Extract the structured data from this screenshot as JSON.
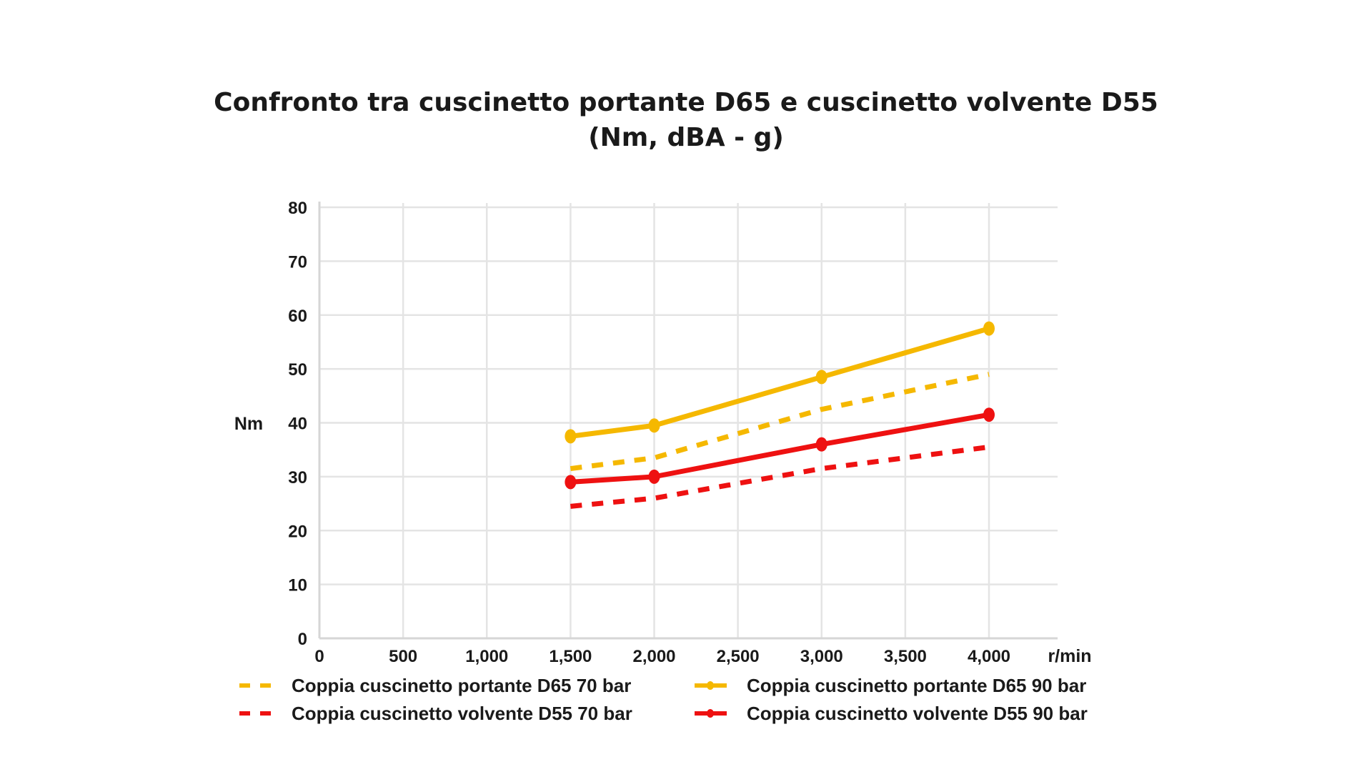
{
  "chart_data": {
    "type": "line",
    "title": "Confronto tra cuscinetto portante D65 e cuscinetto volvente D55",
    "subtitle": "(Nm, dBA - g)",
    "xlabel": "r/min",
    "ylabel": "Nm",
    "xlim": [
      0,
      4000
    ],
    "ylim": [
      0,
      80
    ],
    "x_ticks": [
      0,
      500,
      1000,
      1500,
      2000,
      2500,
      3000,
      3500,
      4000
    ],
    "x_tick_labels": [
      "0",
      "500",
      "1,000",
      "1,500",
      "2,000",
      "2,500",
      "3,000",
      "3,500",
      "4,000"
    ],
    "y_ticks": [
      0,
      10,
      20,
      30,
      40,
      50,
      60,
      70,
      80
    ],
    "y_tick_labels": [
      "0",
      "10",
      "20",
      "30",
      "40",
      "50",
      "60",
      "70",
      "80"
    ],
    "grid": true,
    "legend_position": "bottom",
    "x": [
      1500,
      2000,
      3000,
      4000
    ],
    "series": [
      {
        "name": "Coppia cuscinetto portante D65 70 bar",
        "values": [
          31.5,
          33.5,
          42.5,
          49
        ],
        "color": "#F5B800",
        "style": "dashed",
        "markers": false
      },
      {
        "name": "Coppia cuscinetto portante D65 90 bar",
        "values": [
          37.5,
          39.5,
          48.5,
          57.5
        ],
        "color": "#F5B800",
        "style": "solid",
        "markers": true
      },
      {
        "name": "Coppia cuscinetto volvente D55 70 bar",
        "values": [
          24.5,
          26,
          31.5,
          35.5
        ],
        "color": "#EE1111",
        "style": "dashed",
        "markers": false
      },
      {
        "name": "Coppia cuscinetto volvente D55 90 bar",
        "values": [
          29,
          30,
          36,
          41.5
        ],
        "color": "#EE1111",
        "style": "solid",
        "markers": true
      }
    ]
  }
}
